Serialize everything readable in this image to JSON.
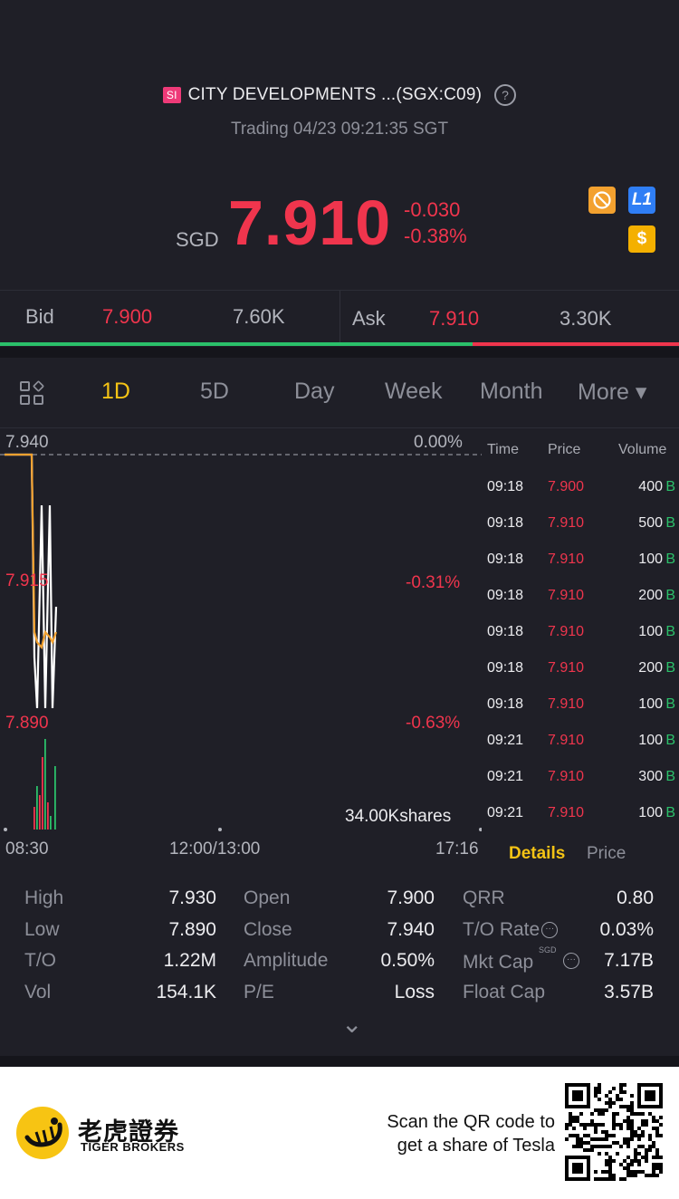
{
  "header": {
    "market_badge": "SI",
    "title": "CITY DEVELOPMENTS ...(SGX:C09)",
    "help_glyph": "?",
    "status": "Trading 04/23 09:21:35 SGT",
    "currency": "SGD",
    "price": "7.910",
    "change": "-0.030",
    "change_pct": "-0.38%",
    "icons": {
      "l1_label": "L1",
      "usd_label": "$",
      "no_short": "no-short-icon"
    }
  },
  "bidask": {
    "bid_label": "Bid",
    "bid_price": "7.900",
    "bid_size": "7.60K",
    "ask_label": "Ask",
    "ask_price": "7.910",
    "ask_size": "3.30K",
    "bid_ratio": 0.696
  },
  "tabs": [
    "1D",
    "5D",
    "Day",
    "Week",
    "Month",
    "More ▾"
  ],
  "active_tab": "1D",
  "chart": {
    "top_price": "7.940",
    "top_pct": "0.00%",
    "mid_price": "7.915",
    "mid_pct": "-0.31%",
    "low_price": "7.890",
    "low_pct": "-0.63%",
    "volume_label": "34.00Kshares",
    "time_start": "08:30",
    "time_mid": "12:00/13:00",
    "time_end": "17:16"
  },
  "chart_data": {
    "type": "line",
    "title": "",
    "xlabel": "",
    "ylabel": "",
    "x_ticks": [
      "08:30",
      "12:00/13:00",
      "17:16"
    ],
    "ylim": [
      7.89,
      7.94
    ],
    "prev_close": 7.94,
    "series": [
      {
        "values": [
          7.94,
          7.94,
          7.94,
          7.94,
          7.9,
          7.89,
          7.93,
          7.89,
          7.93,
          7.89,
          7.91
        ]
      },
      {
        "values": [
          7.94,
          7.94,
          7.94,
          7.94,
          7.905,
          7.903,
          7.902,
          7.905,
          7.904,
          7.903,
          7.905
        ]
      }
    ],
    "volume_bars": [
      {
        "v": 0.25,
        "c": "#f0354d"
      },
      {
        "v": 0.48,
        "c": "#2bc06a"
      },
      {
        "v": 0.38,
        "c": "#f0354d"
      },
      {
        "v": 0.8,
        "c": "#f0354d"
      },
      {
        "v": 1.0,
        "c": "#2bc06a"
      },
      {
        "v": 0.3,
        "c": "#f0354d"
      },
      {
        "v": 0.15,
        "c": "#2bc06a"
      },
      {
        "v": 0.7,
        "c": "#2bc06a"
      }
    ]
  },
  "ticks": {
    "headers": {
      "time": "Time",
      "price": "Price",
      "volume": "Volume"
    },
    "rows": [
      {
        "time": "09:18",
        "price": "7.900",
        "vol": "400",
        "side": "B"
      },
      {
        "time": "09:18",
        "price": "7.910",
        "vol": "500",
        "side": "B"
      },
      {
        "time": "09:18",
        "price": "7.910",
        "vol": "100",
        "side": "B"
      },
      {
        "time": "09:18",
        "price": "7.910",
        "vol": "200",
        "side": "B"
      },
      {
        "time": "09:18",
        "price": "7.910",
        "vol": "100",
        "side": "B"
      },
      {
        "time": "09:18",
        "price": "7.910",
        "vol": "200",
        "side": "B"
      },
      {
        "time": "09:18",
        "price": "7.910",
        "vol": "100",
        "side": "B"
      },
      {
        "time": "09:21",
        "price": "7.910",
        "vol": "100",
        "side": "B"
      },
      {
        "time": "09:21",
        "price": "7.910",
        "vol": "300",
        "side": "B"
      },
      {
        "time": "09:21",
        "price": "7.910",
        "vol": "100",
        "side": "B"
      }
    ],
    "details_label": "Details",
    "price_label": "Price"
  },
  "stats": {
    "high_l": "High",
    "high_v": "7.930",
    "low_l": "Low",
    "low_v": "7.890",
    "to_l": "T/O",
    "to_v": "1.22M",
    "vol_l": "Vol",
    "vol_v": "154.1K",
    "open_l": "Open",
    "open_v": "7.900",
    "close_l": "Close",
    "close_v": "7.940",
    "amp_l": "Amplitude",
    "amp_v": "0.50%",
    "pe_l": "P/E",
    "pe_v": "Loss",
    "qrr_l": "QRR",
    "qrr_v": "0.80",
    "tor_l": "T/O Rate",
    "tor_v": "0.03%",
    "mcap_l": "Mkt Cap",
    "mcap_sup": "SGD",
    "mcap_v": "7.17B",
    "fcap_l": "Float Cap",
    "fcap_v": "3.57B",
    "expand_glyph": "⌄"
  },
  "footer": {
    "brand_cn": "老虎證券",
    "brand_en": "TIGER BROKERS",
    "scan_line1": "Scan the QR code to",
    "scan_line2": "get a share of Tesla"
  },
  "colors": {
    "up": "#2bc06a",
    "down": "#f0354d",
    "accent": "#f4c315",
    "bg": "#1f1f27"
  }
}
